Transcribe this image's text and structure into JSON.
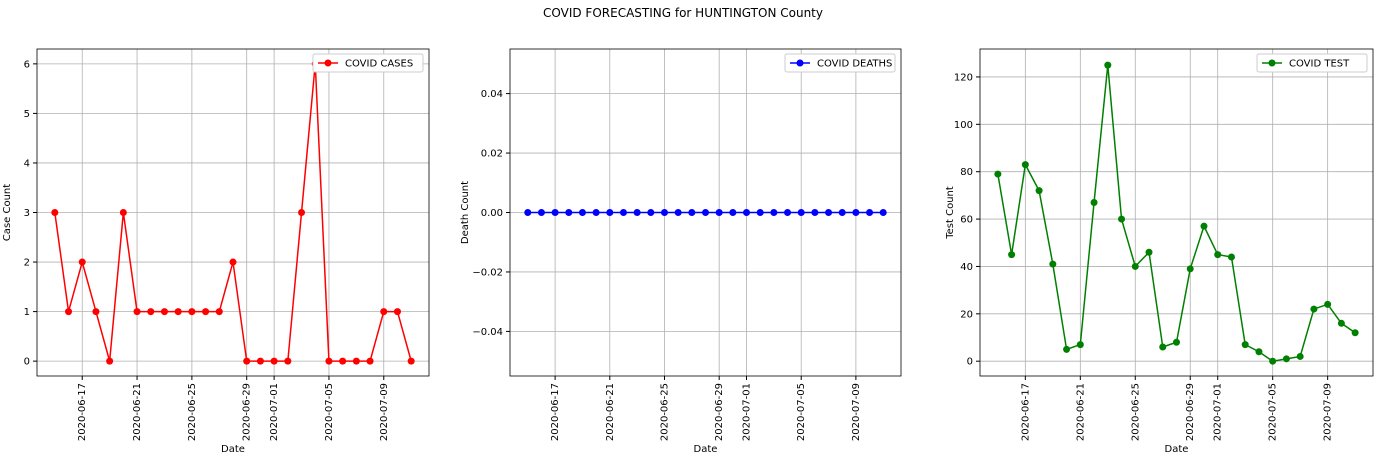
{
  "title": "COVID FORECASTING for HUNTINGTON County",
  "chart_data": [
    {
      "type": "line",
      "xlabel": "Date",
      "ylabel": "Case Count",
      "grid": true,
      "legend": "upper right",
      "x": [
        "2020-06-15",
        "2020-06-16",
        "2020-06-17",
        "2020-06-18",
        "2020-06-19",
        "2020-06-20",
        "2020-06-21",
        "2020-06-22",
        "2020-06-23",
        "2020-06-24",
        "2020-06-25",
        "2020-06-26",
        "2020-06-27",
        "2020-06-28",
        "2020-06-29",
        "2020-06-30",
        "2020-07-01",
        "2020-07-02",
        "2020-07-03",
        "2020-07-04",
        "2020-07-05",
        "2020-07-06",
        "2020-07-07",
        "2020-07-08",
        "2020-07-09",
        "2020-07-10",
        "2020-07-11"
      ],
      "xticks": [
        "2020-06-17",
        "2020-06-21",
        "2020-06-25",
        "2020-06-29",
        "2020-07-01",
        "2020-07-05",
        "2020-07-09"
      ],
      "ylim": [
        -0.3,
        6.3
      ],
      "yticks": [
        0,
        1,
        2,
        3,
        4,
        5,
        6
      ],
      "series": [
        {
          "name": "COVID CASES",
          "color": "#ff0000",
          "values": [
            3,
            1,
            2,
            1,
            0,
            3,
            1,
            1,
            1,
            1,
            1,
            1,
            1,
            2,
            0,
            0,
            0,
            0,
            3,
            6,
            0,
            0,
            0,
            0,
            1,
            1,
            0
          ]
        }
      ]
    },
    {
      "type": "line",
      "xlabel": "Date",
      "ylabel": "Death Count",
      "grid": true,
      "legend": "upper right",
      "x": [
        "2020-06-15",
        "2020-06-16",
        "2020-06-17",
        "2020-06-18",
        "2020-06-19",
        "2020-06-20",
        "2020-06-21",
        "2020-06-22",
        "2020-06-23",
        "2020-06-24",
        "2020-06-25",
        "2020-06-26",
        "2020-06-27",
        "2020-06-28",
        "2020-06-29",
        "2020-06-30",
        "2020-07-01",
        "2020-07-02",
        "2020-07-03",
        "2020-07-04",
        "2020-07-05",
        "2020-07-06",
        "2020-07-07",
        "2020-07-08",
        "2020-07-09",
        "2020-07-10",
        "2020-07-11"
      ],
      "xticks": [
        "2020-06-17",
        "2020-06-21",
        "2020-06-25",
        "2020-06-29",
        "2020-07-01",
        "2020-07-05",
        "2020-07-09"
      ],
      "ylim": [
        -0.055,
        0.055
      ],
      "yticks": [
        {
          "value": -0.04,
          "label": "−0.04"
        },
        {
          "value": -0.02,
          "label": "−0.02"
        },
        {
          "value": 0,
          "label": "0.00"
        },
        {
          "value": 0.02,
          "label": "0.02"
        },
        {
          "value": 0.04,
          "label": "0.04"
        }
      ],
      "series": [
        {
          "name": "COVID DEATHS",
          "color": "#0000ff",
          "values": [
            0,
            0,
            0,
            0,
            0,
            0,
            0,
            0,
            0,
            0,
            0,
            0,
            0,
            0,
            0,
            0,
            0,
            0,
            0,
            0,
            0,
            0,
            0,
            0,
            0,
            0,
            0
          ]
        }
      ]
    },
    {
      "type": "line",
      "xlabel": "Date",
      "ylabel": "Test Count",
      "grid": true,
      "legend": "upper right",
      "x": [
        "2020-06-15",
        "2020-06-16",
        "2020-06-17",
        "2020-06-18",
        "2020-06-19",
        "2020-06-20",
        "2020-06-21",
        "2020-06-22",
        "2020-06-23",
        "2020-06-24",
        "2020-06-25",
        "2020-06-26",
        "2020-06-27",
        "2020-06-28",
        "2020-06-29",
        "2020-06-30",
        "2020-07-01",
        "2020-07-02",
        "2020-07-03",
        "2020-07-04",
        "2020-07-05",
        "2020-07-06",
        "2020-07-07",
        "2020-07-08",
        "2020-07-09",
        "2020-07-10",
        "2020-07-11"
      ],
      "xticks": [
        "2020-06-17",
        "2020-06-21",
        "2020-06-25",
        "2020-06-29",
        "2020-07-01",
        "2020-07-05",
        "2020-07-09"
      ],
      "ylim": [
        -6.25,
        131.8
      ],
      "yticks": [
        0,
        20,
        40,
        60,
        80,
        100,
        120
      ],
      "series": [
        {
          "name": "COVID TEST",
          "color": "#008000",
          "values": [
            79,
            45,
            83,
            72,
            41,
            5,
            7,
            67,
            125,
            60,
            40,
            46,
            6,
            8,
            39,
            57,
            45,
            44,
            7,
            4,
            0,
            1,
            2,
            22,
            24,
            16,
            12
          ]
        }
      ]
    }
  ]
}
